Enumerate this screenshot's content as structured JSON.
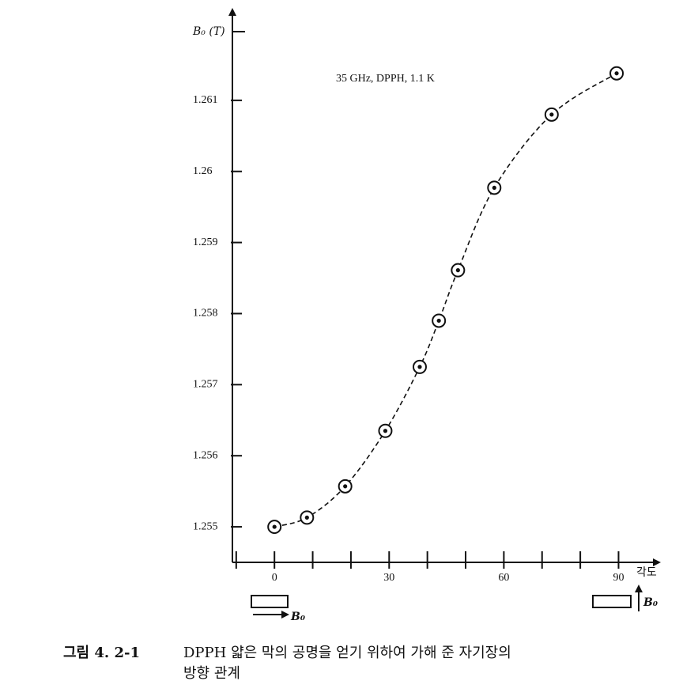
{
  "chart_data": {
    "type": "line",
    "annotation": "35 GHz, DPPH, 1.1 K",
    "y_label": "B₀ (T)",
    "x_label": "각도",
    "x": [
      0,
      8.5,
      18.5,
      29,
      38,
      43,
      48,
      57.5,
      72.5,
      89.5
    ],
    "series": [
      {
        "color": "#111111",
        "values": [
          1.255,
          1.25513,
          1.25557,
          1.25635,
          1.25725,
          1.2579,
          1.25861,
          1.25977,
          1.2608,
          1.26138
        ]
      }
    ],
    "xlim": [
      -11,
      99
    ],
    "xticks": [
      0,
      30,
      60,
      90
    ],
    "xminorticks": [
      -10,
      10,
      20,
      40,
      50,
      70,
      80
    ],
    "ylim": [
      1.2545,
      1.262
    ],
    "yticks": [
      1.255,
      1.256,
      1.257,
      1.258,
      1.259,
      1.26,
      1.261
    ],
    "icon_labels": [
      "B₀",
      "B₀"
    ]
  },
  "caption": {
    "number": "그림 4. 2-1",
    "line1": "DPPH 얇은 막의 공명을 얻기 위하여 가해 준 자기장의",
    "line2": "방향 관계"
  }
}
